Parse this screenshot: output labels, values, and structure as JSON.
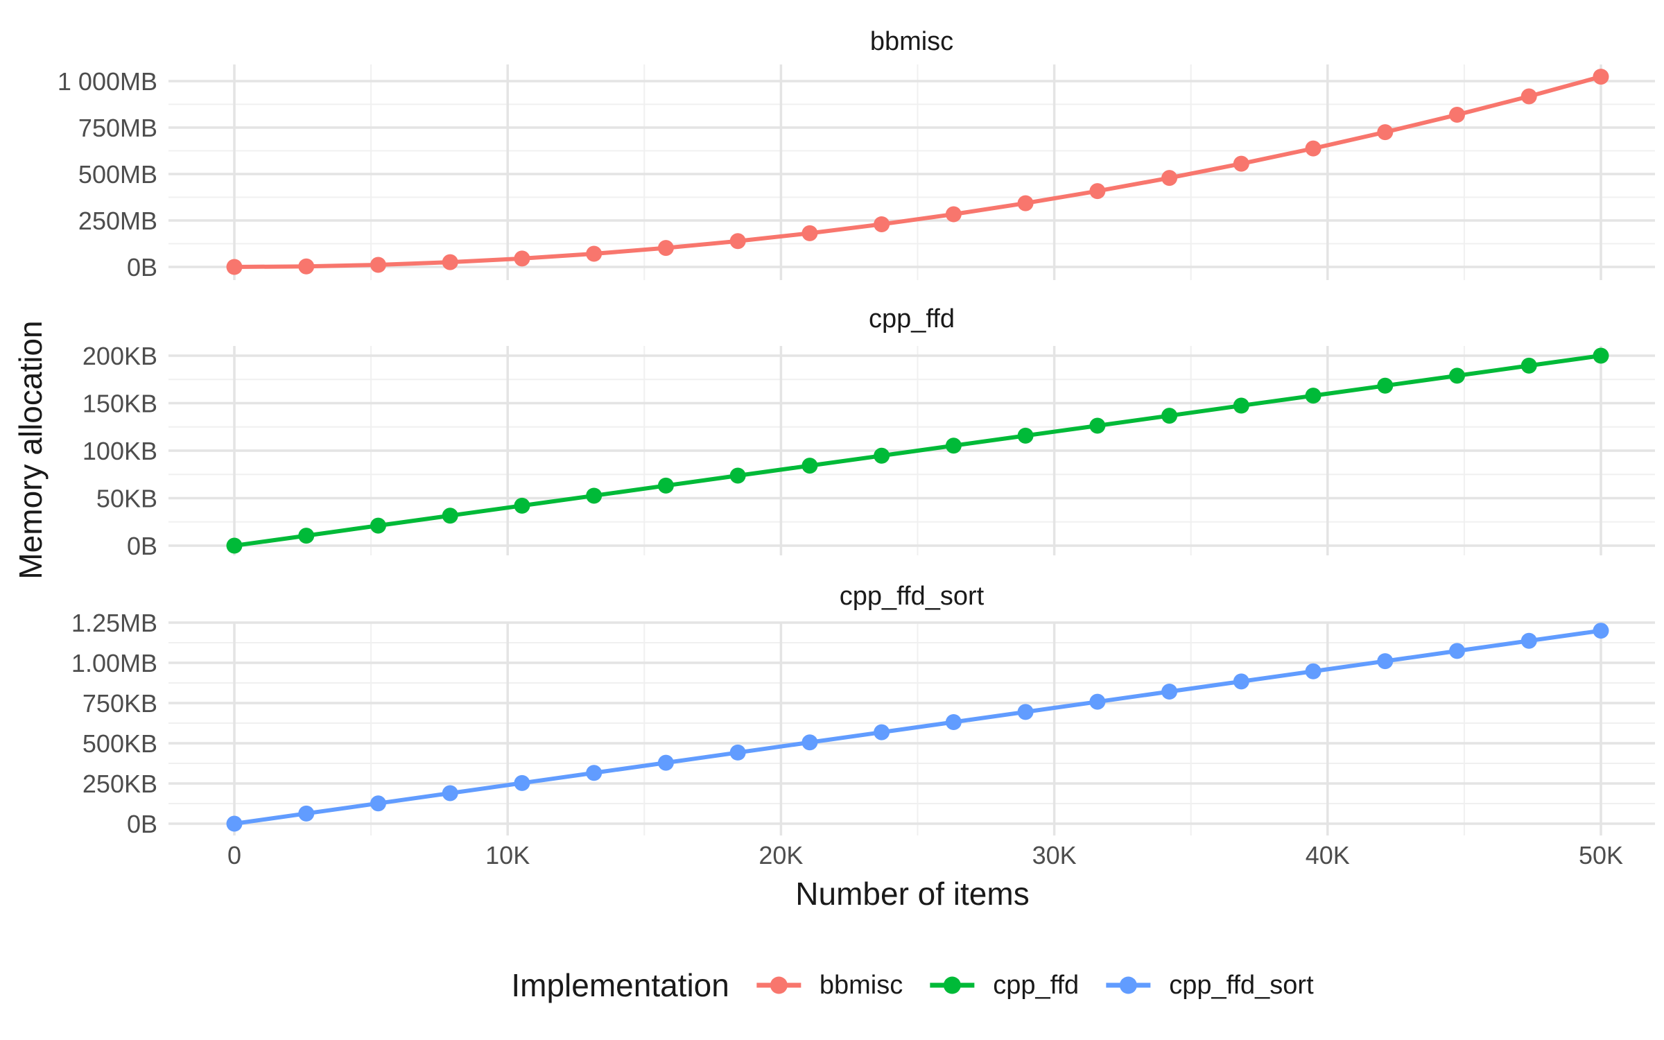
{
  "figure": {
    "y_axis_title": "Memory allocation",
    "x_axis_title": "Number of items"
  },
  "legend": {
    "title": "Implementation",
    "items": [
      {
        "label": "bbmisc",
        "color": "#F8766D"
      },
      {
        "label": "cpp_ffd",
        "color": "#00BA38"
      },
      {
        "label": "cpp_ffd_sort",
        "color": "#619CFF"
      }
    ]
  },
  "chart_data": {
    "type": "line",
    "title": "",
    "xlabel": "Number of items",
    "ylabel": "Memory allocation",
    "x_range": [
      0,
      50000
    ],
    "grid": {
      "major_color": "#e4e4e4",
      "minor_color": "#f0f0f0",
      "visible": true
    },
    "legend_position": "bottom",
    "x": [
      0,
      2632,
      5263,
      7895,
      10526,
      13158,
      15789,
      18421,
      21053,
      23684,
      26316,
      28947,
      31579,
      34211,
      36842,
      39474,
      42105,
      44737,
      47368,
      50000
    ],
    "x_ticks": [
      {
        "label": "0",
        "value": 0
      },
      {
        "label": "10K",
        "value": 10000
      },
      {
        "label": "20K",
        "value": 20000
      },
      {
        "label": "30K",
        "value": 30000
      },
      {
        "label": "40K",
        "value": 40000
      },
      {
        "label": "50K",
        "value": 50000
      }
    ],
    "facets": [
      {
        "title": "bbmisc",
        "series_name": "bbmisc",
        "color": "#F8766D",
        "unit": "MB",
        "y_ticks": [
          {
            "label": "0B",
            "value": 0
          },
          {
            "label": "250MB",
            "value": 250
          },
          {
            "label": "500MB",
            "value": 500
          },
          {
            "label": "750MB",
            "value": 750
          },
          {
            "label": "1 000MB",
            "value": 1000
          }
        ],
        "values": [
          0,
          2.8,
          11.3,
          25.5,
          45.4,
          70.9,
          102.1,
          139.0,
          181.5,
          229.7,
          283.5,
          343.0,
          408.2,
          479.0,
          555.5,
          637.6,
          725.4,
          818.9,
          918.0,
          1024.0
        ]
      },
      {
        "title": "cpp_ffd",
        "series_name": "cpp_ffd",
        "color": "#00BA38",
        "unit": "KB",
        "y_ticks": [
          {
            "label": "0B",
            "value": 0
          },
          {
            "label": "50KB",
            "value": 50
          },
          {
            "label": "100KB",
            "value": 100
          },
          {
            "label": "150KB",
            "value": 150
          },
          {
            "label": "200KB",
            "value": 200
          }
        ],
        "values": [
          0,
          10.5,
          21.1,
          31.6,
          42.1,
          52.6,
          63.2,
          73.7,
          84.2,
          94.7,
          105.3,
          115.8,
          126.3,
          136.8,
          147.4,
          157.9,
          168.4,
          178.9,
          189.5,
          200.0
        ]
      },
      {
        "title": "cpp_ffd_sort",
        "series_name": "cpp_ffd_sort",
        "color": "#619CFF",
        "unit": "KB",
        "y_ticks": [
          {
            "label": "0B",
            "value": 0
          },
          {
            "label": "250KB",
            "value": 250
          },
          {
            "label": "500KB",
            "value": 500
          },
          {
            "label": "750KB",
            "value": 750
          },
          {
            "label": "1.00MB",
            "value": 1000
          },
          {
            "label": "1.25MB",
            "value": 1250
          }
        ],
        "values": [
          0,
          63.2,
          126.3,
          189.5,
          252.6,
          315.8,
          378.9,
          442.1,
          505.3,
          568.4,
          631.6,
          694.7,
          757.9,
          821.1,
          884.2,
          947.4,
          1010.5,
          1073.7,
          1136.8,
          1200.0
        ]
      }
    ]
  }
}
